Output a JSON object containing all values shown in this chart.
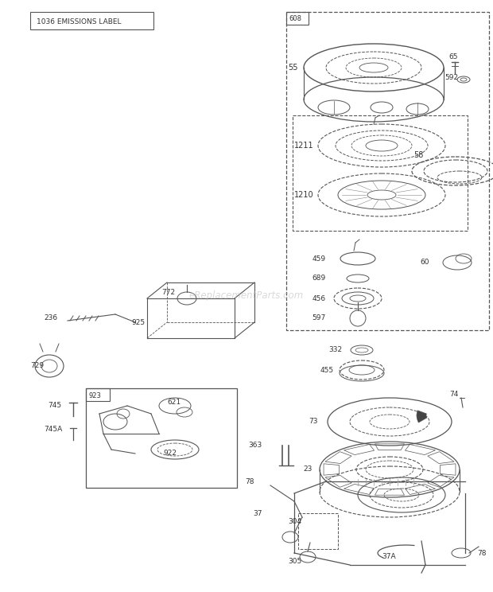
{
  "bg_color": "#ffffff",
  "fig_width": 6.2,
  "fig_height": 7.44,
  "watermark": "eReplacementParts.com",
  "emissions_label": "1036 EMISSIONS LABEL",
  "gray": "#555555",
  "lgray": "#999999"
}
